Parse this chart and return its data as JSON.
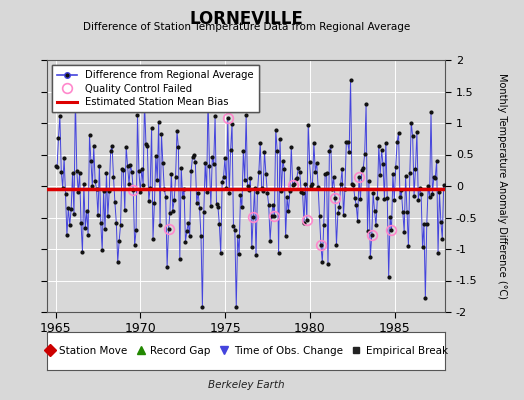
{
  "title": "LORNEVILLE",
  "subtitle": "Difference of Station Temperature Data from Regional Average",
  "ylabel": "Monthly Temperature Anomaly Difference (°C)",
  "xlabel_years": [
    1965,
    1970,
    1975,
    1980,
    1985
  ],
  "ylim": [
    -2,
    2
  ],
  "xlim": [
    1964.5,
    1988.0
  ],
  "bias_value": -0.05,
  "background_color": "#d8d8d8",
  "plot_bg_color": "#d8d8d8",
  "line_color": "#4444dd",
  "bias_color": "#dd0000",
  "marker_color": "#111111",
  "qc_color": "#ff88cc",
  "watermark": "Berkeley Earth",
  "seed": 42,
  "n_points": 276,
  "start_year": 1965.0,
  "end_year": 1987.9,
  "qc_indices": [
    55,
    80,
    108,
    122,
    140,
    155,
    168,
    178,
    188,
    198,
    215,
    224,
    238
  ],
  "grid_color": "#ffffff",
  "yticks": [
    -2,
    -1.5,
    -1,
    -0.5,
    0,
    0.5,
    1,
    1.5,
    2
  ],
  "leg1_labels": [
    "Difference from Regional Average",
    "Quality Control Failed",
    "Estimated Station Mean Bias"
  ],
  "leg2_labels": [
    "Station Move",
    "Record Gap",
    "Time of Obs. Change",
    "Empirical Break"
  ]
}
